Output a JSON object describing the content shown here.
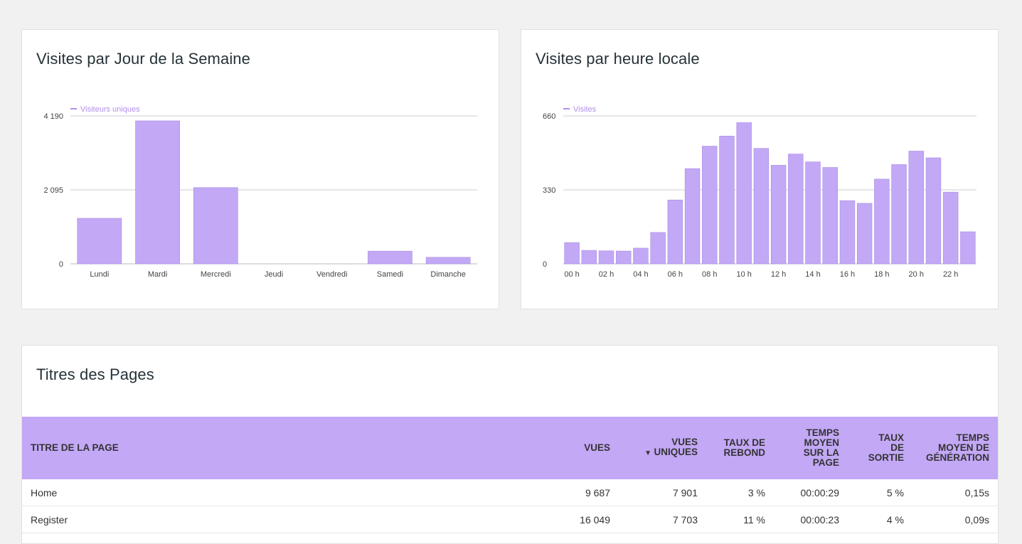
{
  "colors": {
    "bar": "#c3a8f6",
    "header_bg": "#c3a8f6",
    "grid": "#cccccc",
    "text": "#333333",
    "legend": "#b48ef0"
  },
  "cards": {
    "week": {
      "title": "Visites par Jour de la Semaine"
    },
    "hour": {
      "title": "Visites par heure locale"
    },
    "pages": {
      "title": "Titres des Pages"
    }
  },
  "chart_data": [
    {
      "type": "bar",
      "title": "Visites par Jour de la Semaine",
      "legend": "Visiteurs uniques",
      "legend_position": "top-left",
      "grid": true,
      "categories": [
        "Lundi",
        "Mardi",
        "Mercredi",
        "Jeudi",
        "Vendredi",
        "Samedi",
        "Dimanche"
      ],
      "series": [
        {
          "name": "Visiteurs uniques",
          "values": [
            1290,
            4050,
            2160,
            0,
            0,
            360,
            185
          ]
        }
      ],
      "yticks": [
        0,
        2095,
        4190
      ],
      "ytick_labels": [
        "0",
        "2 095",
        "4 190"
      ],
      "ylim": [
        0,
        4190
      ]
    },
    {
      "type": "bar",
      "title": "Visites par heure locale",
      "legend": "Visites",
      "legend_position": "top-left",
      "grid": true,
      "categories": [
        "00 h",
        "01 h",
        "02 h",
        "03 h",
        "04 h",
        "05 h",
        "06 h",
        "07 h",
        "08 h",
        "09 h",
        "10 h",
        "11 h",
        "12 h",
        "13 h",
        "14 h",
        "15 h",
        "16 h",
        "17 h",
        "18 h",
        "19 h",
        "20 h",
        "21 h",
        "22 h",
        "23 h"
      ],
      "xtick_labels": [
        "00 h",
        "02 h",
        "04 h",
        "06 h",
        "08 h",
        "10 h",
        "12 h",
        "14 h",
        "16 h",
        "18 h",
        "20 h",
        "22 h"
      ],
      "series": [
        {
          "name": "Visites",
          "values": [
            95,
            60,
            58,
            57,
            70,
            140,
            285,
            425,
            525,
            570,
            630,
            515,
            440,
            490,
            455,
            430,
            282,
            270,
            378,
            443,
            503,
            473,
            320,
            143
          ]
        }
      ],
      "yticks": [
        0,
        330,
        660
      ],
      "ytick_labels": [
        "0",
        "330",
        "660"
      ],
      "ylim": [
        0,
        660
      ]
    }
  ],
  "table": {
    "headers": [
      {
        "label": "TITRE DE LA PAGE",
        "align": "left"
      },
      {
        "label": "VUES",
        "align": "right"
      },
      {
        "label": "VUES UNIQUES",
        "align": "right",
        "sorted": true
      },
      {
        "label": "TAUX DE REBOND",
        "align": "right"
      },
      {
        "label": "TEMPS MOYEN SUR LA PAGE",
        "align": "right"
      },
      {
        "label": "TAUX DE SORTIE",
        "align": "right"
      },
      {
        "label": "TEMPS MOYEN DE GÉNÉRATION",
        "align": "right"
      }
    ],
    "rows": [
      [
        "Home",
        "9 687",
        "7 901",
        "3 %",
        "00:00:29",
        "5 %",
        "0,15s"
      ],
      [
        "Register",
        "16 049",
        "7 703",
        "11 %",
        "00:00:23",
        "4 %",
        "0,09s"
      ]
    ]
  }
}
